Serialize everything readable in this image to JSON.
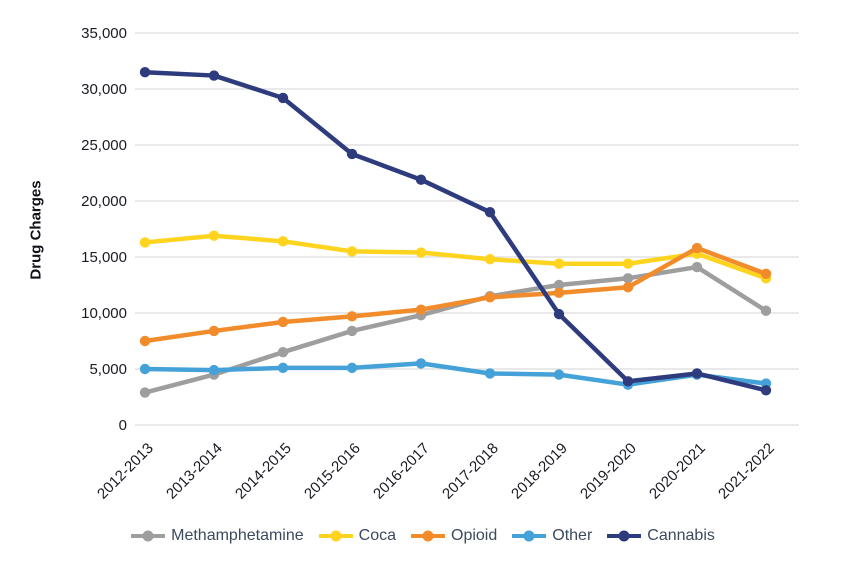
{
  "chart_data": {
    "type": "line",
    "title": "",
    "xlabel": "",
    "ylabel": "Drug Charges",
    "ylim": [
      0,
      35000
    ],
    "y_tick_step": 5000,
    "y_tick_values": [
      0,
      5000,
      10000,
      15000,
      20000,
      25000,
      30000,
      35000
    ],
    "y_tick_labels": [
      "0",
      "5,000",
      "10,000",
      "15,000",
      "20,000",
      "25,000",
      "30,000",
      "35,000"
    ],
    "grid": "horizontal-only",
    "legend_position": "bottom",
    "categories": [
      "2012-2013",
      "2013-2014",
      "2014-2015",
      "2015-2016",
      "2016-2017",
      "2017-2018",
      "2018-2019",
      "2019-2020",
      "2020-2021",
      "2021-2022"
    ],
    "series": [
      {
        "name": "Methamphetamine",
        "color": "#9E9E9E",
        "values": [
          2900,
          4500,
          6500,
          8400,
          9800,
          11500,
          12500,
          13100,
          14100,
          10200
        ]
      },
      {
        "name": "Coca",
        "color": "#FFD41F",
        "values": [
          16300,
          16900,
          16400,
          15500,
          15400,
          14800,
          14400,
          14400,
          15300,
          13100
        ]
      },
      {
        "name": "Opioid",
        "color": "#F28C2B",
        "values": [
          7500,
          8400,
          9200,
          9700,
          10300,
          11400,
          11800,
          12300,
          15800,
          13500
        ]
      },
      {
        "name": "Other",
        "color": "#45A2D8",
        "values": [
          5000,
          4900,
          5100,
          5100,
          5500,
          4600,
          4500,
          3600,
          4500,
          3700
        ]
      },
      {
        "name": "Cannabis",
        "color": "#2E3C7E",
        "values": [
          31500,
          31200,
          29200,
          24200,
          21900,
          19000,
          9900,
          3900,
          4600,
          3100
        ]
      }
    ],
    "colors": {
      "axis_text": "#1A1A24",
      "legend_text": "#3C4A5E",
      "gridline": "#DCDCDC",
      "background": "#FFFFFF"
    }
  }
}
